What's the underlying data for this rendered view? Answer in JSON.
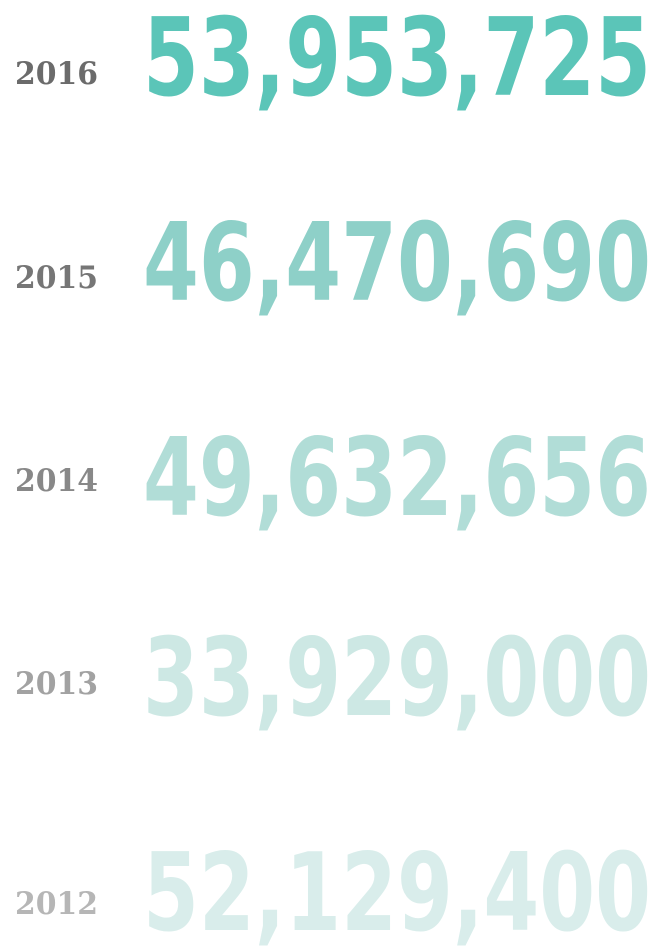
{
  "rows": [
    {
      "year": "2016",
      "value": "53,953,725"
    },
    {
      "year": "2015",
      "value": "46,470,690"
    },
    {
      "year": "2014",
      "value": "49,632,656"
    },
    {
      "year": "2013",
      "value": "33,929,000"
    },
    {
      "year": "2012",
      "value": "52,129,400"
    }
  ]
}
